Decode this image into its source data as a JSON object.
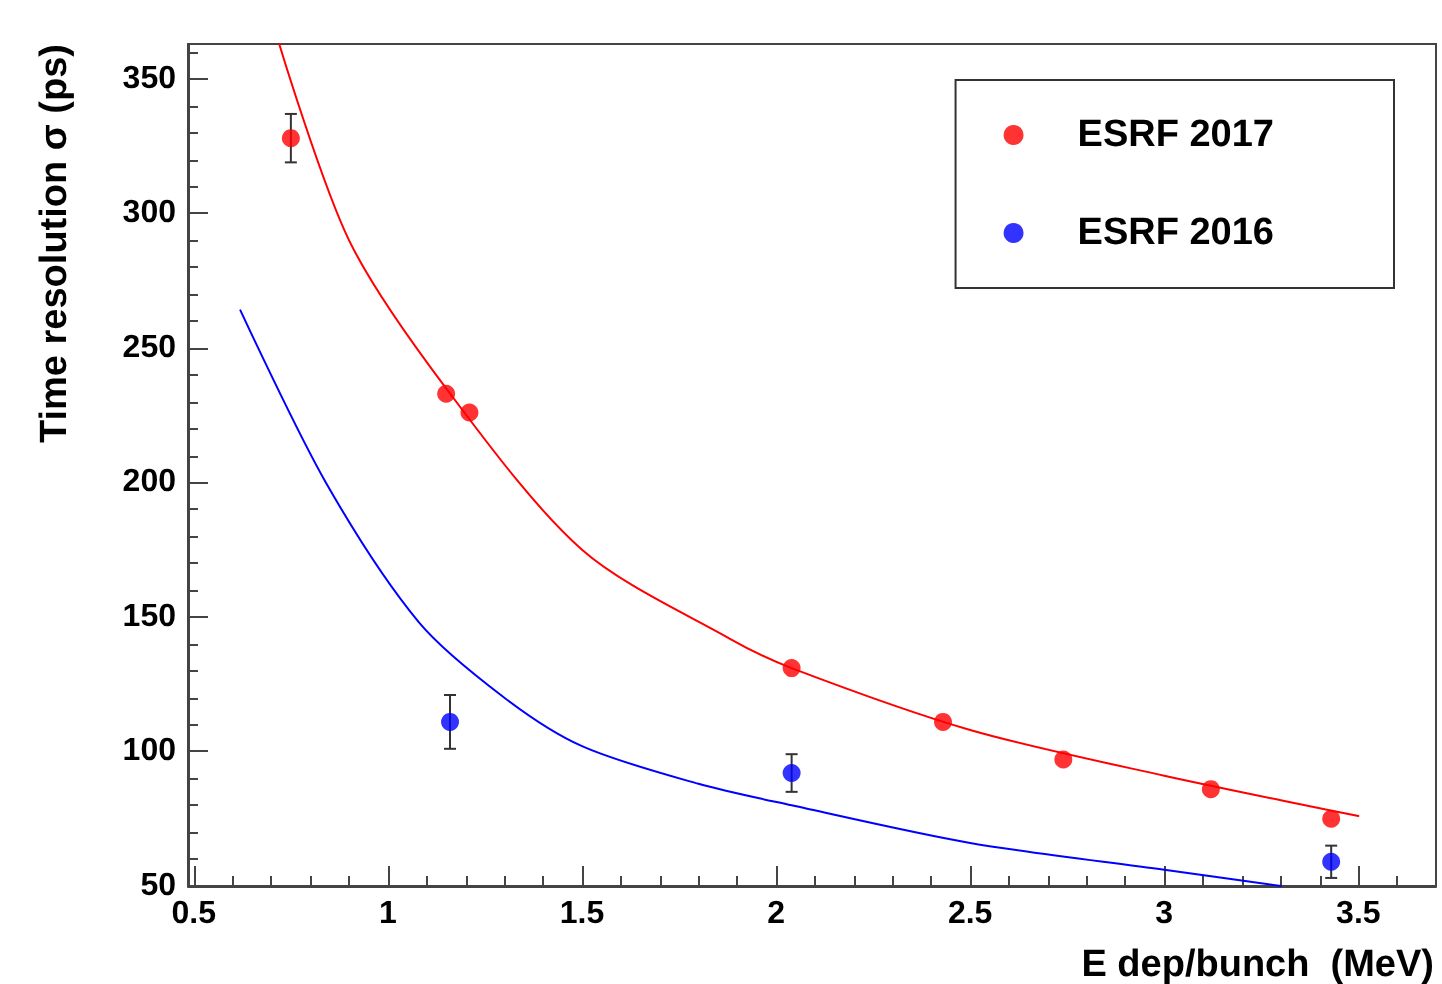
{
  "chart_data": {
    "type": "scatter",
    "xlabel": "E dep/bunch  (MeV)",
    "ylabel": "Time resolution σ (ps)",
    "xlim": [
      0.485,
      3.7
    ],
    "xticks": [
      0.5,
      1,
      1.5,
      2,
      2.5,
      3,
      3.5
    ],
    "ylim": [
      50,
      363
    ],
    "yticks": [
      50,
      100,
      150,
      200,
      250,
      300,
      350
    ],
    "grid": false,
    "legend": "top right",
    "marker": "circle",
    "series": [
      {
        "name": "ESRF 2017",
        "color": "#ff0000",
        "x": [
          0.75,
          1.15,
          1.21,
          2.04,
          2.43,
          2.74,
          3.12,
          3.43
        ],
        "values": [
          328,
          233,
          226,
          131,
          111,
          97,
          86,
          75
        ],
        "errors": [
          9,
          null,
          null,
          null,
          null,
          null,
          null,
          null
        ]
      },
      {
        "name": "ESRF 2016",
        "color": "#0000ff",
        "x": [
          1.16,
          2.04,
          3.43
        ],
        "values": [
          111,
          92,
          59
        ],
        "errors": [
          10,
          7,
          6
        ]
      },
      {
        "type": "line",
        "marker": "none",
        "color": "#ff0000",
        "x": [
          0.72,
          0.9,
          1.15,
          1.5,
          1.88,
          2.04,
          2.5,
          3.0,
          3.5
        ],
        "values": [
          363,
          290,
          235,
          175,
          142,
          131,
          108,
          91,
          76
        ]
      },
      {
        "type": "line",
        "marker": "none",
        "color": "#0000ff",
        "x": [
          0.62,
          0.84,
          1.08,
          1.3,
          1.5,
          1.8,
          2.04,
          2.5,
          3.0,
          3.3
        ],
        "values": [
          264,
          200,
          148,
          120,
          102,
          88,
          80,
          66,
          56,
          50
        ]
      }
    ]
  }
}
